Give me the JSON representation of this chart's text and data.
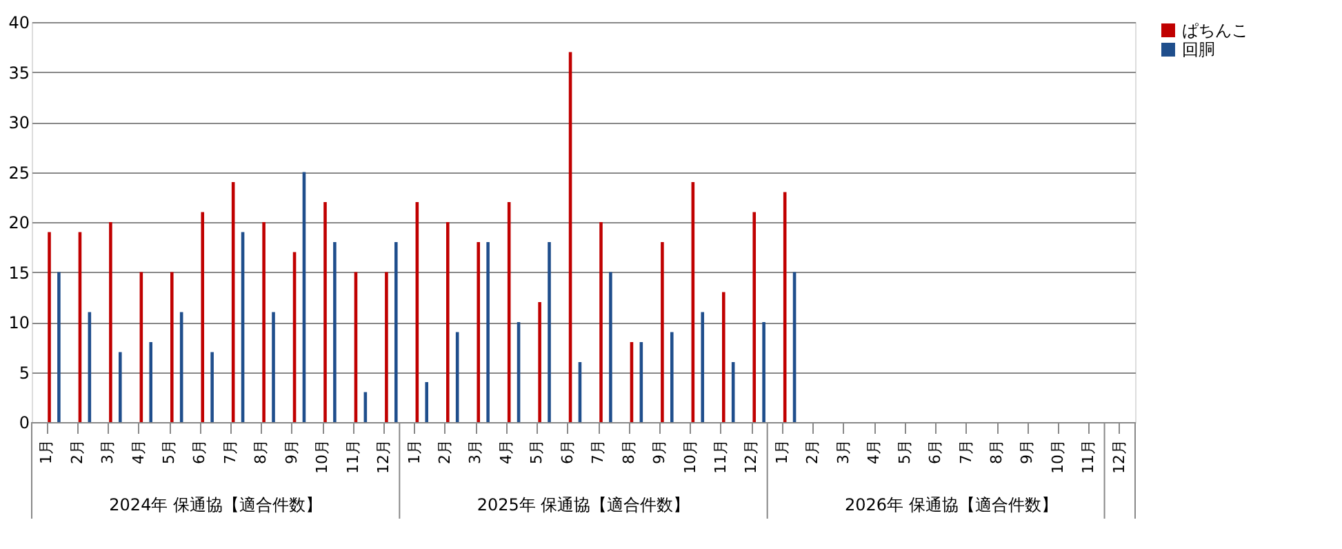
{
  "chart_data": {
    "type": "bar",
    "categories": [
      "1月",
      "2月",
      "3月",
      "4月",
      "5月",
      "6月",
      "7月",
      "8月",
      "9月",
      "10月",
      "11月",
      "12月",
      "1月",
      "2月",
      "3月",
      "4月",
      "5月",
      "6月",
      "7月",
      "8月",
      "9月",
      "10月",
      "11月",
      "12月",
      "1月",
      "2月",
      "3月",
      "4月",
      "5月",
      "6月",
      "7月",
      "8月",
      "9月",
      "10月",
      "11月",
      "12月"
    ],
    "series": [
      {
        "name": "ぱちんこ",
        "color": "#c00000",
        "values": [
          19,
          19,
          20,
          15,
          15,
          21,
          24,
          20,
          17,
          22,
          15,
          15,
          22,
          20,
          18,
          22,
          12,
          37,
          20,
          8,
          18,
          24,
          13,
          21,
          23,
          null,
          null,
          null,
          null,
          null,
          null,
          null,
          null,
          null,
          null,
          null
        ]
      },
      {
        "name": "回胴",
        "color": "#1f4e8c",
        "values": [
          15,
          11,
          7,
          8,
          11,
          7,
          19,
          11,
          25,
          18,
          3,
          18,
          4,
          9,
          18,
          10,
          18,
          6,
          15,
          8,
          9,
          11,
          6,
          10,
          15,
          null,
          null,
          null,
          null,
          null,
          null,
          null,
          null,
          null,
          null,
          null
        ]
      }
    ],
    "annotations": [
      "2024年 保通協【適合件数】",
      "2025年 保通協【適合件数】",
      "2026年 保通協【適合件数】"
    ],
    "ylim": [
      0,
      40
    ],
    "yticks": [
      0,
      5,
      10,
      15,
      20,
      25,
      30,
      35,
      40
    ],
    "grid": "y",
    "legend": "right"
  }
}
